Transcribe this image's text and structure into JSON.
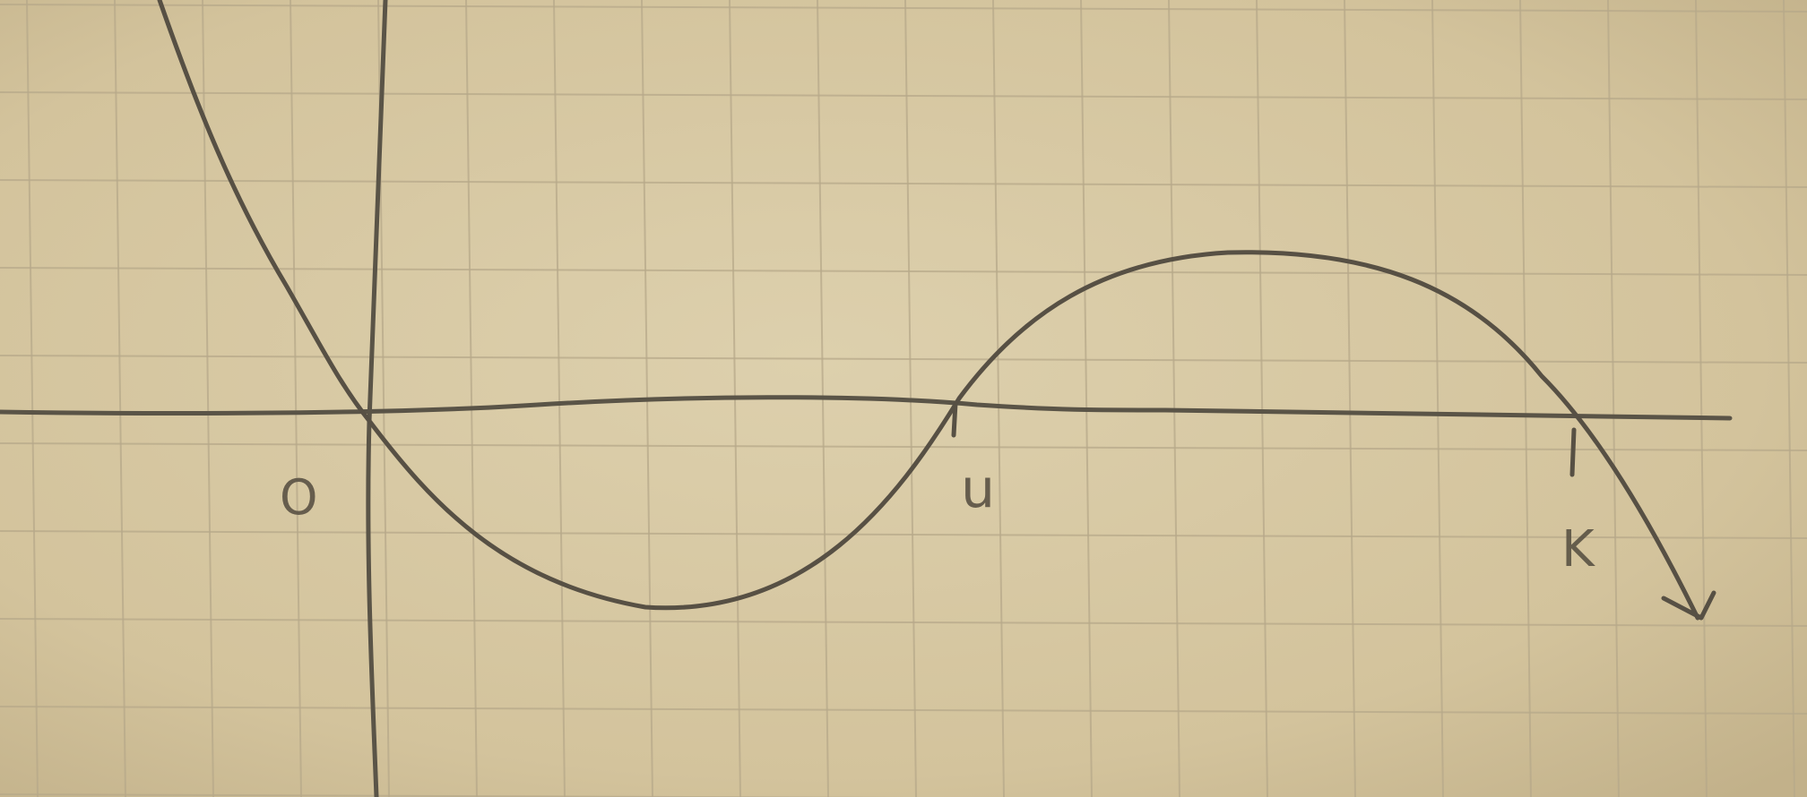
{
  "labels": {
    "origin": "O",
    "point_u": "u",
    "point_k": "K"
  }
}
